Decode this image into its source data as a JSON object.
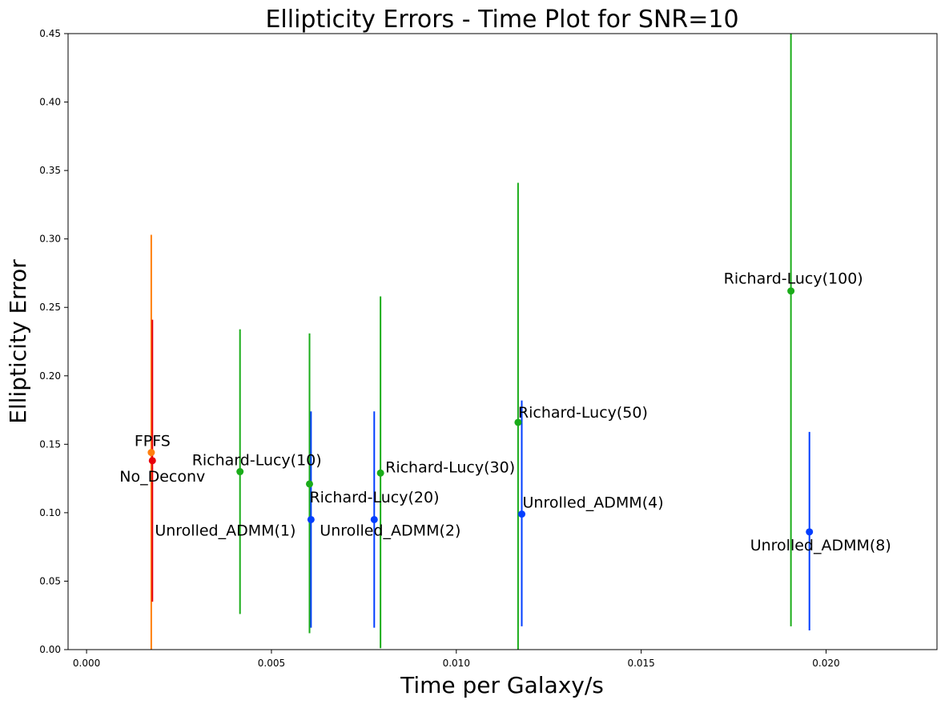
{
  "chart_data": {
    "type": "scatter",
    "title": "Ellipticity Errors - Time Plot for SNR=10",
    "xlabel": "Time per Galaxy/s",
    "ylabel": "Ellipticity Error",
    "xlim": [
      -0.0005,
      0.023
    ],
    "ylim": [
      0,
      0.45
    ],
    "x_ticks": [
      0.0,
      0.005,
      0.01,
      0.015,
      0.02
    ],
    "x_tick_labels": [
      "0.000",
      "0.005",
      "0.010",
      "0.015",
      "0.020"
    ],
    "y_ticks": [
      0.0,
      0.05,
      0.1,
      0.15,
      0.2,
      0.25,
      0.3,
      0.35,
      0.4,
      0.45
    ],
    "y_tick_labels": [
      "0.00",
      "0.05",
      "0.10",
      "0.15",
      "0.20",
      "0.25",
      "0.30",
      "0.35",
      "0.40",
      "0.45"
    ],
    "grid": false,
    "points": [
      {
        "label": "FPFS",
        "x": 0.00175,
        "y": 0.144,
        "err_low": 0.0,
        "err_high": 0.303,
        "color": "#ff7f0e",
        "label_anchor": "end",
        "label_dx": 24,
        "label_dy": -8
      },
      {
        "label": "No_Deconv",
        "x": 0.00178,
        "y": 0.138,
        "err_low": 0.035,
        "err_high": 0.241,
        "color": "#e8000b",
        "label_anchor": "end",
        "label_dx": 66,
        "label_dy": 26
      },
      {
        "label": "Richard-Lucy(10)",
        "x": 0.00415,
        "y": 0.13,
        "err_low": 0.026,
        "err_high": 0.234,
        "color": "#1aac19",
        "label_anchor": "start",
        "label_dx": -60,
        "label_dy": -8
      },
      {
        "label": "Richard-Lucy(20)",
        "x": 0.00603,
        "y": 0.121,
        "err_low": 0.012,
        "err_high": 0.231,
        "color": "#1aac19",
        "label_anchor": "start",
        "label_dx": 0,
        "label_dy": 23
      },
      {
        "label": "Richard-Lucy(30)",
        "x": 0.00795,
        "y": 0.129,
        "err_low": 0.001,
        "err_high": 0.258,
        "color": "#1aac19",
        "label_anchor": "start",
        "label_dx": 6,
        "label_dy": -1
      },
      {
        "label": "Richard-Lucy(50)",
        "x": 0.01167,
        "y": 0.166,
        "err_low": 0.0,
        "err_high": 0.341,
        "color": "#1aac19",
        "label_anchor": "start",
        "label_dx": 0,
        "label_dy": -6
      },
      {
        "label": "Richard-Lucy(100)",
        "x": 0.01905,
        "y": 0.262,
        "err_low": 0.017,
        "err_high": 0.45,
        "color": "#1aac19",
        "label_anchor": "start",
        "label_dx": -84,
        "label_dy": -9
      },
      {
        "label": "Unrolled_ADMM(1)",
        "x": 0.00607,
        "y": 0.095,
        "err_low": 0.016,
        "err_high": 0.174,
        "color": "#023eff",
        "label_anchor": "start",
        "label_dx": -195,
        "label_dy": 20
      },
      {
        "label": "Unrolled_ADMM(2)",
        "x": 0.00778,
        "y": 0.095,
        "err_low": 0.016,
        "err_high": 0.174,
        "color": "#023eff",
        "label_anchor": "start",
        "label_dx": -68,
        "label_dy": 20
      },
      {
        "label": "Unrolled_ADMM(4)",
        "x": 0.01177,
        "y": 0.099,
        "err_low": 0.017,
        "err_high": 0.182,
        "color": "#023eff",
        "label_anchor": "start",
        "label_dx": 1,
        "label_dy": -8
      },
      {
        "label": "Unrolled_ADMM(8)",
        "x": 0.01955,
        "y": 0.086,
        "err_low": 0.014,
        "err_high": 0.159,
        "color": "#023eff",
        "label_anchor": "start",
        "label_dx": -74,
        "label_dy": 23
      }
    ]
  }
}
